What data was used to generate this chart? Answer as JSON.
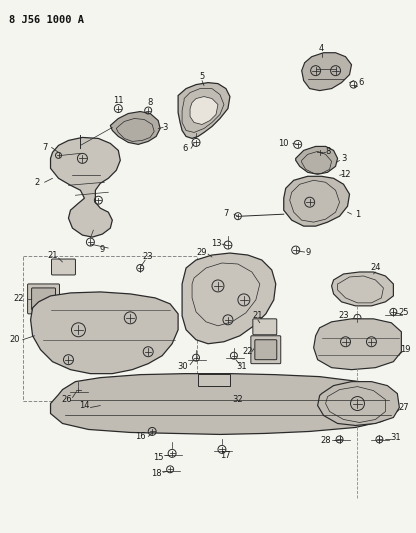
{
  "title": "8 J56 1000 A",
  "bg_color": "#f5f5f0",
  "fig_width": 4.16,
  "fig_height": 5.33,
  "dpi": 100,
  "lc": "#2a2a2a",
  "lw": 0.8,
  "label_fs": 6.0
}
